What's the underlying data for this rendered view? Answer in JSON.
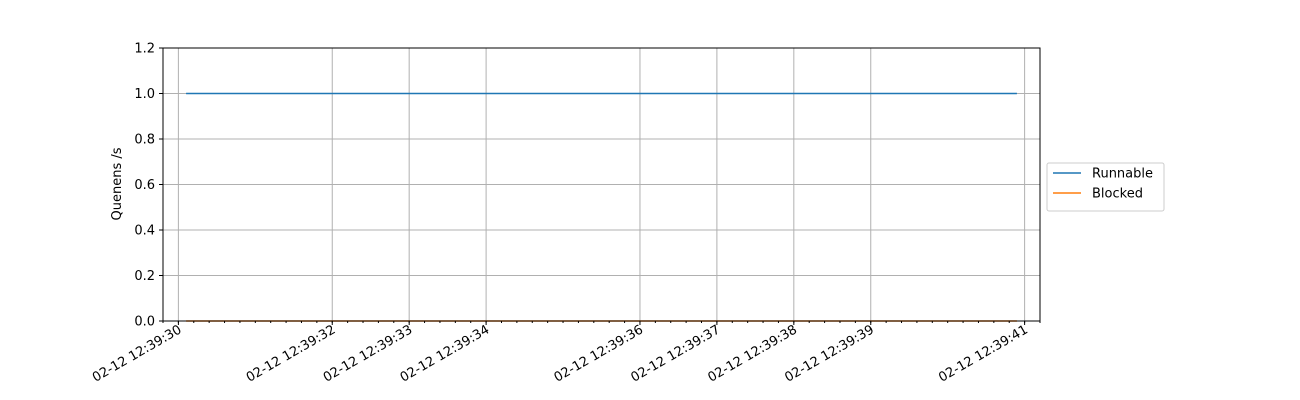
{
  "chart_data": {
    "type": "line",
    "title": "",
    "xlabel": "",
    "ylabel": "Quenens /s",
    "ylim": [
      0,
      1.2
    ],
    "yticks": [
      0.0,
      0.2,
      0.4,
      0.6,
      0.8,
      1.0,
      1.2
    ],
    "ytick_labels": [
      "0.0",
      "0.2",
      "0.4",
      "0.6",
      "0.8",
      "1.0",
      "1.2"
    ],
    "xticks": [
      "02-12 12:39:30",
      "02-12 12:39:32",
      "02-12 12:39:33",
      "02-12 12:39:34",
      "02-12 12:39:36",
      "02-12 12:39:37",
      "02-12 12:39:38",
      "02-12 12:39:39",
      "02-12 12:39:41"
    ],
    "xlim": [
      "02-12 12:39:29.8",
      "02-12 12:39:41.2"
    ],
    "grid": true,
    "legend_position": "center-right outside",
    "x": [
      "02-12 12:39:30.1",
      "02-12 12:39:40.9"
    ],
    "series": [
      {
        "name": "Runnable",
        "color": "#1f77b4",
        "values": [
          1.0,
          1.0
        ]
      },
      {
        "name": "Blocked",
        "color": "#ff7f0e",
        "values": [
          0.0,
          0.0
        ]
      }
    ]
  }
}
